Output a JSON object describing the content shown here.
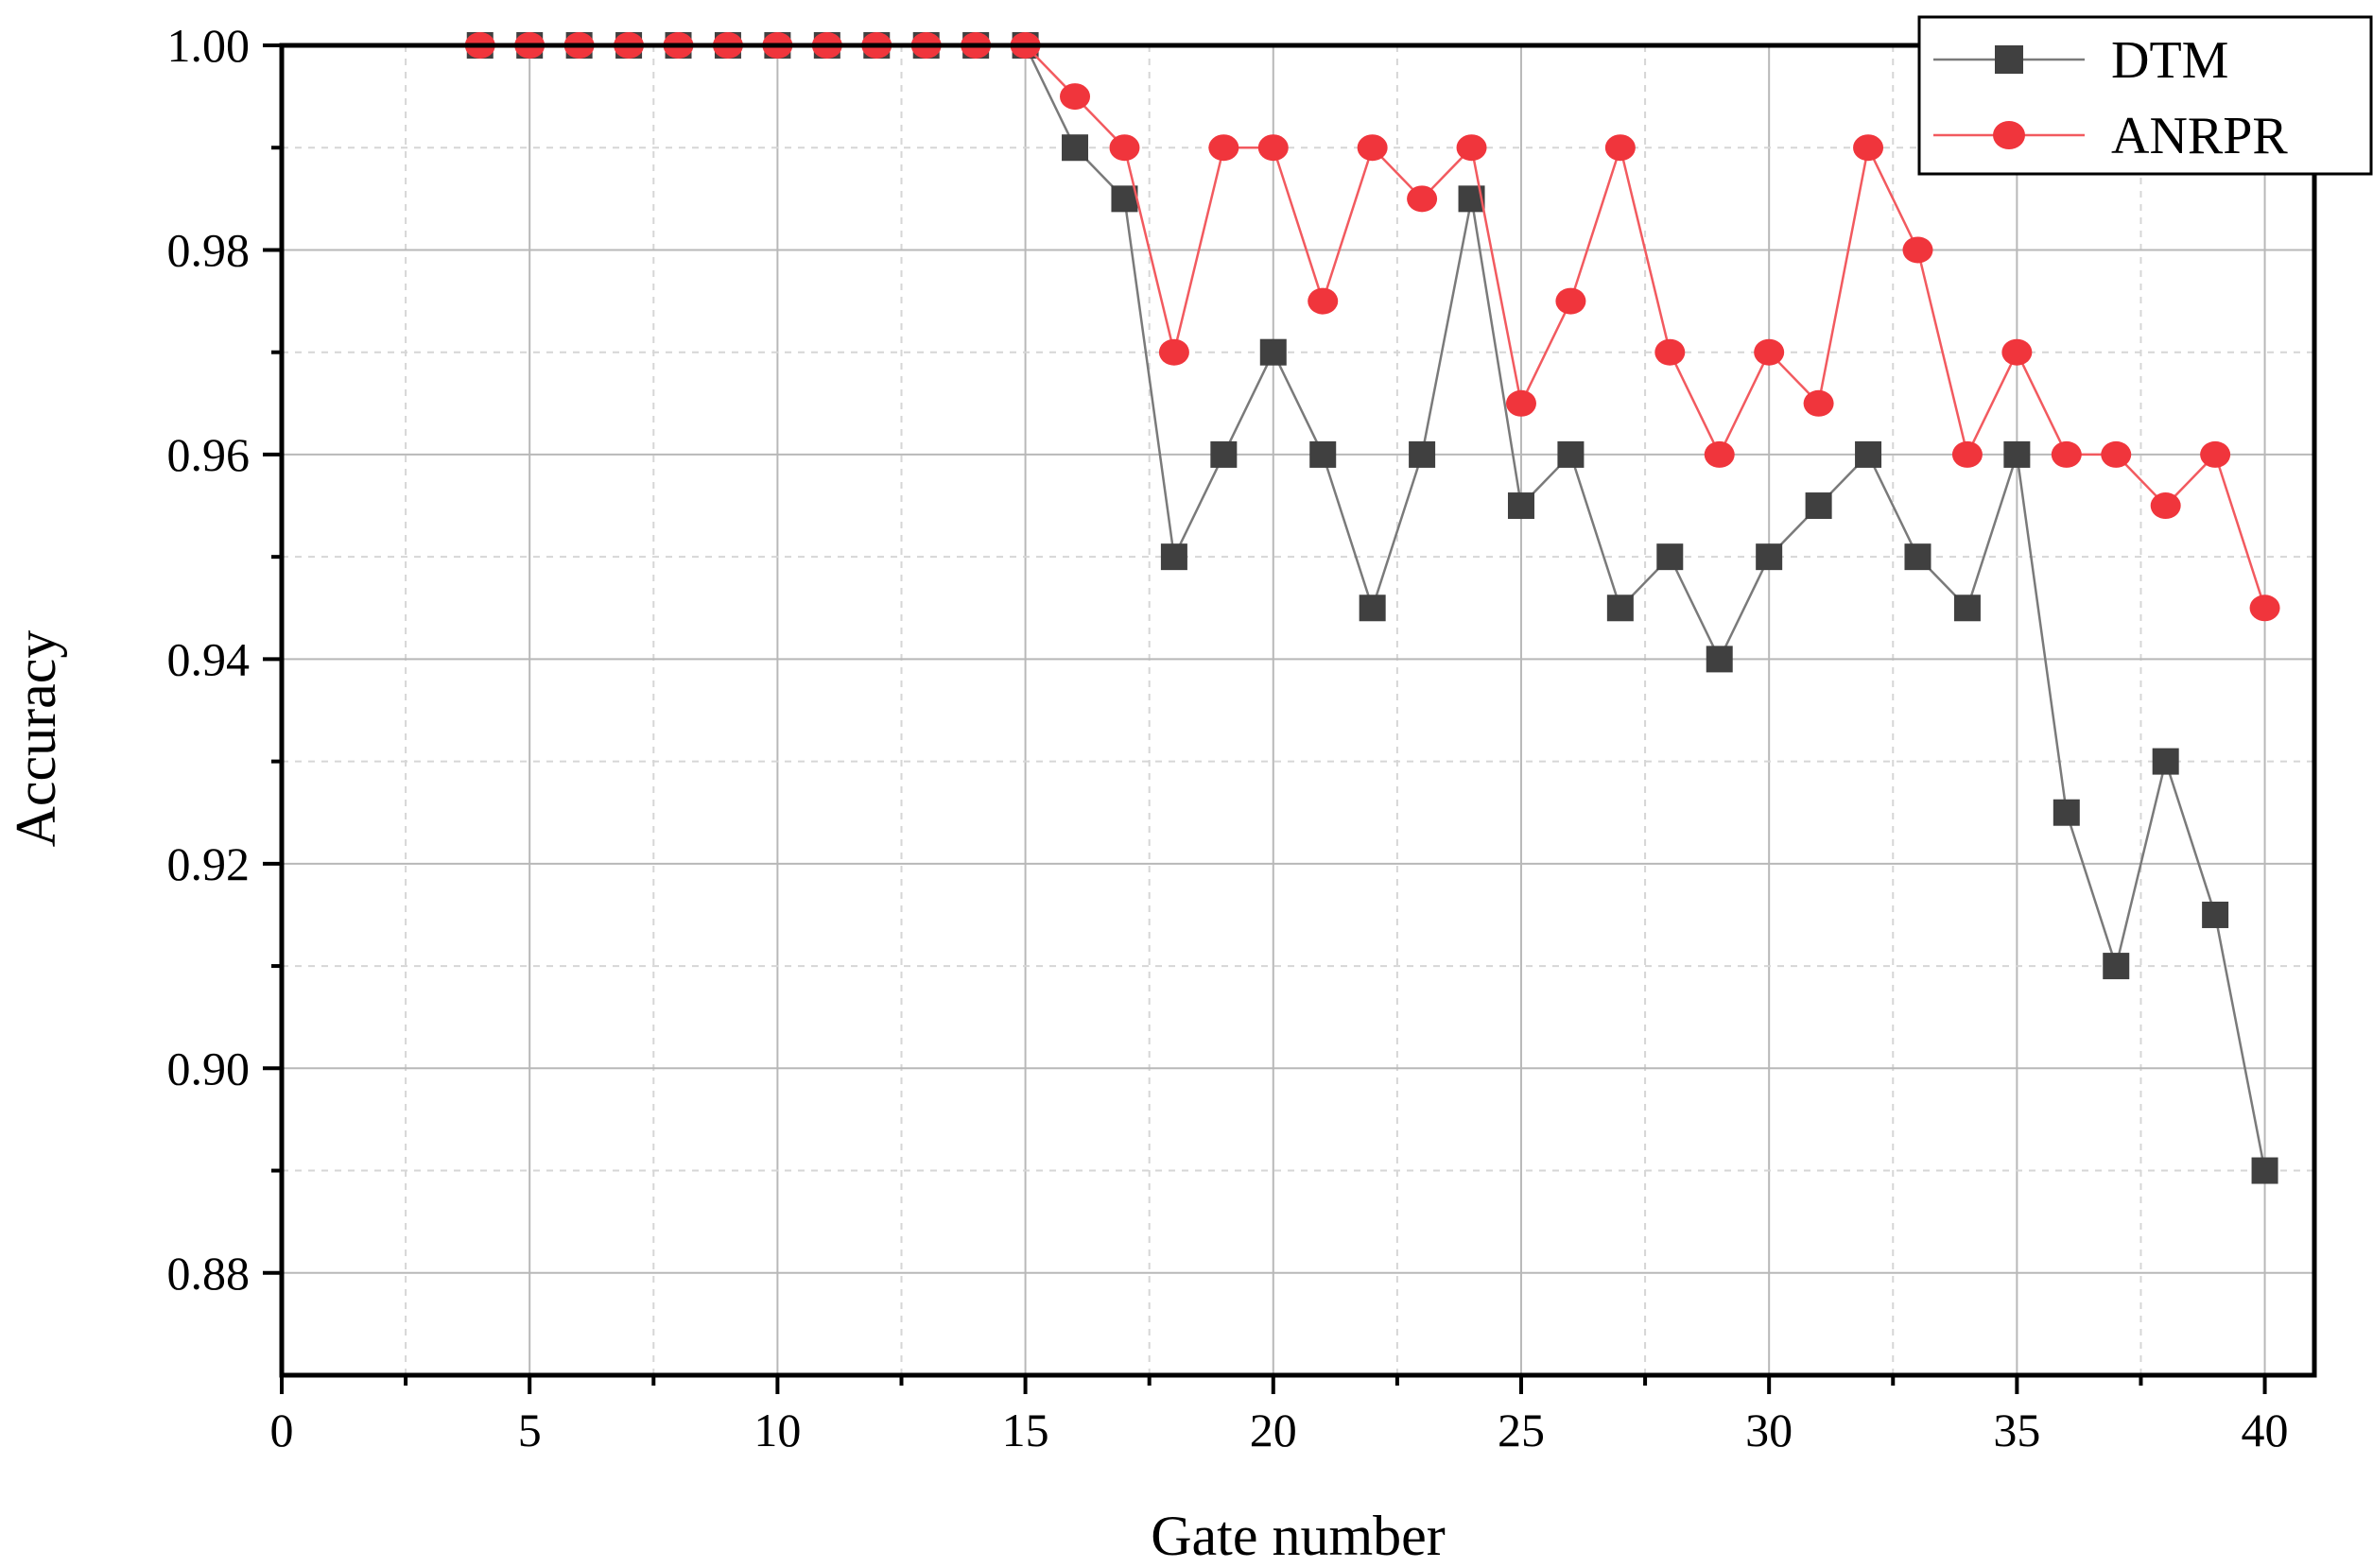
{
  "chart_data": {
    "type": "line",
    "title": "",
    "xlabel": "Gate number",
    "ylabel": "Accuracy",
    "xlim": [
      0,
      41
    ],
    "ylim": [
      0.87,
      1.0
    ],
    "x_major_ticks": [
      0,
      5,
      10,
      15,
      20,
      25,
      30,
      35,
      40
    ],
    "x_minor_ticks": [
      2.5,
      7.5,
      12.5,
      17.5,
      22.5,
      27.5,
      32.5,
      37.5
    ],
    "y_major_ticks": [
      0.88,
      0.9,
      0.92,
      0.94,
      0.96,
      0.98,
      1.0
    ],
    "y_minor_ticks": [
      0.89,
      0.91,
      0.93,
      0.95,
      0.97,
      0.99
    ],
    "y_tick_decimals": 2,
    "grid": true,
    "legend_position": "top-right",
    "x": [
      4,
      5,
      6,
      7,
      8,
      9,
      10,
      11,
      12,
      13,
      14,
      15,
      16,
      17,
      18,
      19,
      20,
      21,
      22,
      23,
      24,
      25,
      26,
      27,
      28,
      29,
      30,
      31,
      32,
      33,
      34,
      35,
      36,
      37,
      38,
      39,
      40
    ],
    "series": [
      {
        "name": "DTM",
        "color": "#404040",
        "marker": "square",
        "values": [
          1.0,
          1.0,
          1.0,
          1.0,
          1.0,
          1.0,
          1.0,
          1.0,
          1.0,
          1.0,
          1.0,
          1.0,
          0.99,
          0.985,
          0.95,
          0.96,
          0.97,
          0.96,
          0.945,
          0.96,
          0.985,
          0.955,
          0.96,
          0.945,
          0.95,
          0.94,
          0.95,
          0.955,
          0.96,
          0.95,
          0.945,
          0.96,
          0.925,
          0.91,
          0.93,
          0.915,
          0.89
        ]
      },
      {
        "name": "ANRPR",
        "color": "#f0353c",
        "marker": "circle",
        "values": [
          1.0,
          1.0,
          1.0,
          1.0,
          1.0,
          1.0,
          1.0,
          1.0,
          1.0,
          1.0,
          1.0,
          1.0,
          0.995,
          0.99,
          0.97,
          0.99,
          0.99,
          0.975,
          0.99,
          0.985,
          0.99,
          0.965,
          0.975,
          0.99,
          0.97,
          0.96,
          0.97,
          0.965,
          0.99,
          0.98,
          0.96,
          0.97,
          0.96,
          0.96,
          0.955,
          0.96,
          0.945
        ]
      }
    ]
  }
}
